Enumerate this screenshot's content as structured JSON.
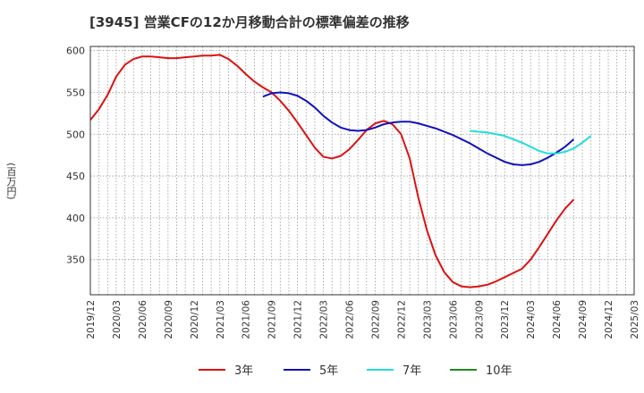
{
  "chart_data": {
    "type": "line",
    "title": "[3945]  営業CFの12か月移動合計の標準偏差の推移",
    "ylabel": "(百万円)",
    "xlabel": "",
    "ylim": [
      308,
      605
    ],
    "yticks": [
      350,
      400,
      450,
      500,
      550,
      600
    ],
    "x_tick_labels": [
      "2019/12",
      "2020/03",
      "2020/06",
      "2020/09",
      "2020/12",
      "2021/03",
      "2021/06",
      "2021/09",
      "2021/12",
      "2022/03",
      "2022/06",
      "2022/09",
      "2022/12",
      "2023/03",
      "2023/06",
      "2023/09",
      "2023/12",
      "2024/03",
      "2024/06",
      "2024/09",
      "2024/12",
      "2025/03"
    ],
    "x_start": "2019/12",
    "x_end": "2025/03",
    "grid": true,
    "legend_position": "bottom",
    "series": [
      {
        "name": "3年",
        "color": "#dd1111",
        "start": "2019/12",
        "values": [
          517,
          530,
          547,
          569,
          583,
          590,
          593,
          593,
          592,
          591,
          591,
          592,
          593,
          594,
          594,
          595,
          590,
          582,
          572,
          563,
          556,
          550,
          540,
          528,
          514,
          499,
          484,
          473,
          471,
          474,
          482,
          493,
          505,
          513,
          516,
          512,
          500,
          471,
          424,
          385,
          355,
          335,
          323,
          318,
          317,
          318,
          320,
          324,
          329,
          334,
          339,
          350,
          365,
          381,
          397,
          411,
          422
        ]
      },
      {
        "name": "5年",
        "color": "#1111bb",
        "start": "2021/08",
        "values": [
          545,
          549,
          550,
          549,
          546,
          540,
          532,
          522,
          514,
          508,
          505,
          504,
          505,
          508,
          512,
          514,
          515,
          515,
          513,
          510,
          507,
          503,
          499,
          494,
          489,
          483,
          477,
          472,
          467,
          464,
          463,
          464,
          467,
          472,
          478,
          485,
          494
        ]
      },
      {
        "name": "7年",
        "color": "#22dddd",
        "start": "2023/08",
        "values": [
          504,
          503,
          502,
          500,
          498,
          494,
          490,
          485,
          480,
          477,
          477,
          479,
          483,
          490,
          498
        ]
      },
      {
        "name": "10年",
        "color": "#228822",
        "start": "2024/09",
        "values": []
      }
    ]
  }
}
